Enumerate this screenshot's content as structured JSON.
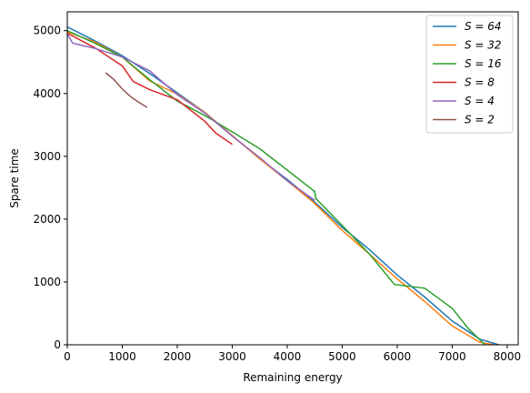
{
  "chart_data": {
    "type": "line",
    "xlabel": "Remaining energy",
    "ylabel": "Spare time",
    "xlim": [
      0,
      8200
    ],
    "ylim": [
      0,
      5300
    ],
    "xticks": [
      0,
      1000,
      2000,
      3000,
      4000,
      5000,
      6000,
      7000,
      8000
    ],
    "yticks": [
      0,
      1000,
      2000,
      3000,
      4000,
      5000
    ],
    "grid": false,
    "legend_position": "top-right",
    "series": [
      {
        "name": "S = 64",
        "color": "#1f77b4",
        "x": [
          0,
          500,
          1000,
          1500,
          2000,
          2500,
          3000,
          3500,
          4000,
          4500,
          5000,
          5500,
          6000,
          6500,
          7000,
          7500,
          7850
        ],
        "y": [
          5060,
          4840,
          4600,
          4320,
          4010,
          3700,
          3330,
          2960,
          2630,
          2270,
          1870,
          1510,
          1110,
          760,
          380,
          90,
          0
        ]
      },
      {
        "name": "S = 32",
        "color": "#ff7f0e",
        "x": [
          0,
          500,
          1000,
          1500,
          2000,
          2500,
          3000,
          3500,
          4000,
          4500,
          5000,
          5500,
          6000,
          6500,
          7000,
          7500,
          7760
        ],
        "y": [
          4980,
          4820,
          4580,
          4200,
          3990,
          3700,
          3330,
          2960,
          2610,
          2250,
          1820,
          1440,
          1050,
          690,
          300,
          40,
          0
        ]
      },
      {
        "name": "S = 16",
        "color": "#2ca02c",
        "x": [
          0,
          500,
          1000,
          1500,
          2000,
          2500,
          3000,
          3500,
          4000,
          4500,
          4520,
          5000,
          5500,
          5950,
          6500,
          7000,
          7300,
          7600
        ],
        "y": [
          5000,
          4800,
          4580,
          4220,
          3880,
          3650,
          3390,
          3120,
          2780,
          2440,
          2330,
          1900,
          1440,
          960,
          900,
          580,
          250,
          0
        ]
      },
      {
        "name": "S = 8",
        "color": "#d62728",
        "x": [
          0,
          500,
          1000,
          1200,
          1500,
          2000,
          2500,
          2700,
          3000
        ],
        "y": [
          4960,
          4730,
          4440,
          4190,
          4060,
          3900,
          3560,
          3370,
          3190
        ]
      },
      {
        "name": "S = 4",
        "color": "#9467bd",
        "x": [
          0,
          100,
          500,
          1000,
          1500,
          2000,
          2500,
          3000,
          3500,
          4000,
          4500
        ],
        "y": [
          4950,
          4800,
          4720,
          4580,
          4360,
          3980,
          3690,
          3320,
          2980,
          2610,
          2300
        ]
      },
      {
        "name": "S = 2",
        "color": "#8c564b",
        "x": [
          700,
          850,
          1000,
          1150,
          1300,
          1450
        ],
        "y": [
          4330,
          4220,
          4070,
          3950,
          3860,
          3780
        ]
      }
    ]
  }
}
